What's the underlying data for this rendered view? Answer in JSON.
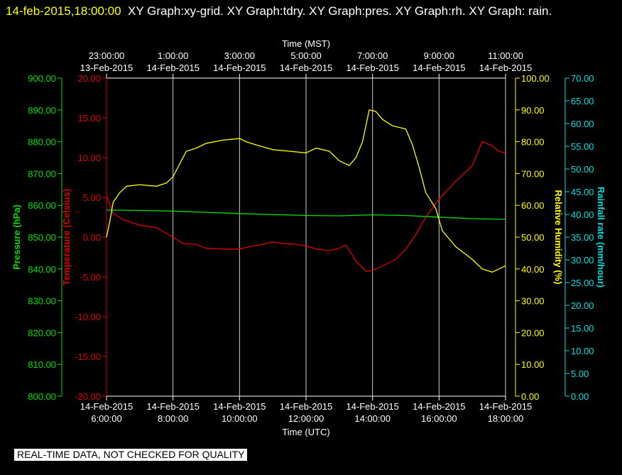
{
  "header": {
    "timestamp": "14-feb-2015,18:00:00",
    "graphs": "XY Graph:xy-grid.  XY Graph:tdry.  XY Graph:pres.  XY Graph:rh.  XY Graph: rain."
  },
  "notice": "REAL-TIME DATA, NOT CHECKED FOR QUALITY",
  "chart_data": {
    "type": "line",
    "title": "",
    "top_axis": {
      "label": "Time (MST)",
      "ticks": [
        {
          "time": "23:00:00",
          "date": "13-Feb-2015"
        },
        {
          "time": "1:00:00",
          "date": "14-Feb-2015"
        },
        {
          "time": "3:00:00",
          "date": "14-Feb-2015"
        },
        {
          "time": "5:00:00",
          "date": "14-Feb-2015"
        },
        {
          "time": "7:00:00",
          "date": "14-Feb-2015"
        },
        {
          "time": "9:00:00",
          "date": "14-Feb-2015"
        },
        {
          "time": "11:00:00",
          "date": "14-Feb-2015"
        }
      ]
    },
    "bottom_axis": {
      "label": "Time (UTC)",
      "xlim": [
        6,
        18
      ],
      "ticks": [
        {
          "date": "14-Feb-2015",
          "time": "6:00:00"
        },
        {
          "date": "14-Feb-2015",
          "time": "8:00:00"
        },
        {
          "date": "14-Feb-2015",
          "time": "10:00:00"
        },
        {
          "date": "14-Feb-2015",
          "time": "12:00:00"
        },
        {
          "date": "14-Feb-2015",
          "time": "14:00:00"
        },
        {
          "date": "14-Feb-2015",
          "time": "16:00:00"
        },
        {
          "date": "14-Feb-2015",
          "time": "18:00:00"
        }
      ]
    },
    "vertical_grid": true,
    "axes": {
      "pressure": {
        "label": "Pressure (hPa)",
        "color": "#00e000",
        "ylim": [
          800,
          900
        ],
        "ticks": [
          "900.00",
          "890.00",
          "880.00",
          "870.00",
          "860.00",
          "850.00",
          "840.00",
          "830.00",
          "820.00",
          "810.00",
          "800.00"
        ]
      },
      "temperature": {
        "label": "Temperature (Celsius)",
        "color": "#e00000",
        "ylim": [
          -20,
          20
        ],
        "ticks": [
          "20.00",
          "15.00",
          "10.00",
          "5.00",
          "0.00",
          "-5.00",
          "-10.00",
          "-15.00",
          "-20.00"
        ]
      },
      "humidity": {
        "label": "Relative Humidity (%)",
        "color": "#ffff00",
        "ylim": [
          0,
          100
        ],
        "ticks": [
          "100.00",
          "90.00",
          "80.00",
          "70.00",
          "60.00",
          "50.00",
          "40.00",
          "30.00",
          "20.00",
          "10.00",
          "0.00"
        ]
      },
      "rainfall": {
        "label": "Rainfall rate (mm/hour)",
        "color": "#00e0e0",
        "ylim": [
          0,
          70
        ],
        "ticks": [
          "70.00",
          "65.00",
          "60.00",
          "55.00",
          "50.00",
          "45.00",
          "40.00",
          "35.00",
          "30.00",
          "25.00",
          "20.00",
          "15.00",
          "10.00",
          "5.00",
          "0.00"
        ]
      }
    },
    "series": [
      {
        "axis": "temperature",
        "color": "#e00000",
        "points": [
          [
            6.0,
            5.2
          ],
          [
            6.2,
            3.0
          ],
          [
            6.5,
            2.2
          ],
          [
            7.0,
            1.5
          ],
          [
            7.5,
            1.2
          ],
          [
            8.0,
            0.0
          ],
          [
            8.3,
            -0.8
          ],
          [
            8.7,
            -0.9
          ],
          [
            9.0,
            -1.4
          ],
          [
            9.5,
            -1.5
          ],
          [
            10.0,
            -1.5
          ],
          [
            10.3,
            -1.2
          ],
          [
            10.7,
            -0.9
          ],
          [
            11.0,
            -0.6
          ],
          [
            11.3,
            -0.8
          ],
          [
            11.7,
            -0.9
          ],
          [
            12.0,
            -1.1
          ],
          [
            12.3,
            -1.5
          ],
          [
            12.7,
            -1.7
          ],
          [
            13.0,
            -1.4
          ],
          [
            13.2,
            -1.0
          ],
          [
            13.5,
            -3.0
          ],
          [
            13.8,
            -4.3
          ],
          [
            14.0,
            -4.2
          ],
          [
            14.3,
            -3.6
          ],
          [
            14.7,
            -2.8
          ],
          [
            15.0,
            -1.5
          ],
          [
            15.3,
            0.3
          ],
          [
            15.6,
            2.5
          ],
          [
            16.0,
            4.8
          ],
          [
            16.5,
            7.0
          ],
          [
            17.0,
            9.0
          ],
          [
            17.3,
            12.0
          ],
          [
            17.6,
            11.5
          ],
          [
            17.8,
            10.8
          ],
          [
            18.0,
            10.6
          ]
        ]
      },
      {
        "axis": "pressure",
        "color": "#00e000",
        "points": [
          [
            6.0,
            858.5
          ],
          [
            7.0,
            858.4
          ],
          [
            8.0,
            858.2
          ],
          [
            9.0,
            857.8
          ],
          [
            10.0,
            857.4
          ],
          [
            11.0,
            857.1
          ],
          [
            12.0,
            856.8
          ],
          [
            13.0,
            856.7
          ],
          [
            14.0,
            857.0
          ],
          [
            15.0,
            856.8
          ],
          [
            16.0,
            856.3
          ],
          [
            17.0,
            855.8
          ],
          [
            18.0,
            855.6
          ]
        ]
      },
      {
        "axis": "humidity",
        "color": "#ffff00",
        "points": [
          [
            6.0,
            50.0
          ],
          [
            6.1,
            55.0
          ],
          [
            6.2,
            61.0
          ],
          [
            6.4,
            64.0
          ],
          [
            6.6,
            66.0
          ],
          [
            7.0,
            66.5
          ],
          [
            7.5,
            66.0
          ],
          [
            7.8,
            67.0
          ],
          [
            8.0,
            69.0
          ],
          [
            8.2,
            73.0
          ],
          [
            8.4,
            77.0
          ],
          [
            8.7,
            78.0
          ],
          [
            9.0,
            79.5
          ],
          [
            9.5,
            80.5
          ],
          [
            10.0,
            81.0
          ],
          [
            10.2,
            80.0
          ],
          [
            10.5,
            79.0
          ],
          [
            11.0,
            77.5
          ],
          [
            11.5,
            77.0
          ],
          [
            12.0,
            76.5
          ],
          [
            12.3,
            78.0
          ],
          [
            12.7,
            77.0
          ],
          [
            13.0,
            74.0
          ],
          [
            13.3,
            72.5
          ],
          [
            13.5,
            75.0
          ],
          [
            13.7,
            80.0
          ],
          [
            13.9,
            90.0
          ],
          [
            14.1,
            89.5
          ],
          [
            14.3,
            87.0
          ],
          [
            14.6,
            85.0
          ],
          [
            15.0,
            84.0
          ],
          [
            15.2,
            79.0
          ],
          [
            15.4,
            72.0
          ],
          [
            15.6,
            64.0
          ],
          [
            15.9,
            59.0
          ],
          [
            16.1,
            52.0
          ],
          [
            16.5,
            47.0
          ],
          [
            17.0,
            43.0
          ],
          [
            17.3,
            40.0
          ],
          [
            17.6,
            39.0
          ],
          [
            17.8,
            40.0
          ],
          [
            18.0,
            41.0
          ]
        ]
      },
      {
        "axis": "rainfall",
        "color": "#00e0e0",
        "points": []
      }
    ]
  }
}
